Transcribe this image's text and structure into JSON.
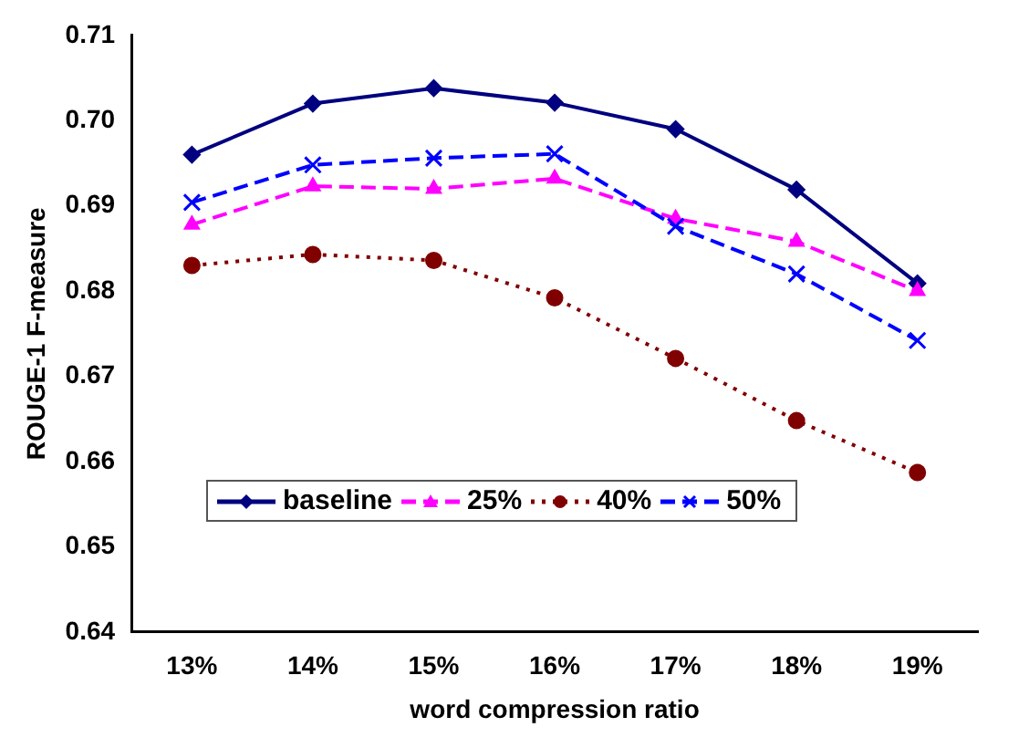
{
  "chart_data": {
    "type": "line",
    "xlabel": "word compression ratio",
    "ylabel": "ROUGE-1 F-measure",
    "categories": [
      "13%",
      "14%",
      "15%",
      "16%",
      "17%",
      "18%",
      "19%"
    ],
    "series": [
      {
        "name": "baseline",
        "color": "#000080",
        "marker": "diamond",
        "line_style": "solid",
        "values": [
          0.696,
          0.702,
          0.7038,
          0.7021,
          0.699,
          0.6919,
          0.6809
        ]
      },
      {
        "name": "25%",
        "color": "#ff00ff",
        "marker": "triangle",
        "line_style": "dashed",
        "values": [
          0.6878,
          0.6923,
          0.692,
          0.6932,
          0.6885,
          0.6858,
          0.68
        ]
      },
      {
        "name": "40%",
        "color": "#800000",
        "marker": "circle",
        "line_style": "dotted",
        "values": [
          0.683,
          0.6843,
          0.6836,
          0.6792,
          0.6721,
          0.6648,
          0.6587
        ]
      },
      {
        "name": "50%",
        "color": "#0000ff",
        "marker": "cross",
        "line_style": "dashed",
        "values": [
          0.6904,
          0.6948,
          0.6956,
          0.6961,
          0.6876,
          0.682,
          0.6742
        ]
      }
    ],
    "ylim": [
      0.64,
      0.71
    ],
    "yticks": [
      {
        "value": 0.64,
        "label": "0.64"
      },
      {
        "value": 0.65,
        "label": "0.65"
      },
      {
        "value": 0.66,
        "label": "0.66"
      },
      {
        "value": 0.67,
        "label": "0.67"
      },
      {
        "value": 0.68,
        "label": "0.68"
      },
      {
        "value": 0.69,
        "label": "0.69"
      },
      {
        "value": 0.7,
        "label": "0.70"
      },
      {
        "value": 0.71,
        "label": "0.71"
      }
    ],
    "grid": false,
    "legend": "bottom left"
  }
}
